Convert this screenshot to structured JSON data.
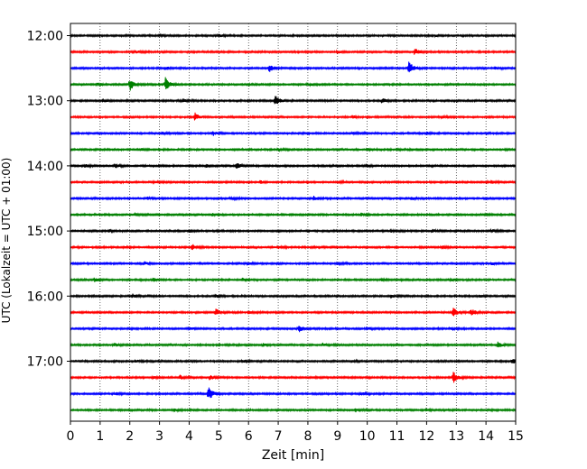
{
  "chart_data": {
    "type": "line",
    "xlabel": "Zeit  [min]",
    "ylabel": "UTC (Lokalzeit = UTC + 01:00)",
    "xlim": [
      0,
      15
    ],
    "x_ticks": [
      0,
      1,
      2,
      3,
      4,
      5,
      6,
      7,
      8,
      9,
      10,
      11,
      12,
      13,
      14,
      15
    ],
    "y_tick_labels": [
      "12:00",
      "13:00",
      "14:00",
      "15:00",
      "16:00",
      "17:00"
    ],
    "grid": "vertical dotted at each minute",
    "trace_interval_minutes": 15,
    "color_cycle": [
      "#000000",
      "#ff0000",
      "#0000ff",
      "#008000"
    ],
    "traces": [
      {
        "start": "12:00",
        "events": [
          [
            3.0,
            0.18
          ],
          [
            5.0,
            0.15
          ],
          [
            12.3,
            0.12
          ]
        ]
      },
      {
        "start": "12:15",
        "events": [
          [
            11.6,
            0.45
          ],
          [
            2.2,
            0.15
          ],
          [
            9.0,
            0.12
          ]
        ]
      },
      {
        "start": "12:30",
        "events": [
          [
            6.7,
            0.5
          ],
          [
            11.4,
            1.0
          ],
          [
            3.2,
            0.2
          ],
          [
            14.3,
            0.15
          ]
        ]
      },
      {
        "start": "12:45",
        "events": [
          [
            2.0,
            0.9
          ],
          [
            3.2,
            1.0
          ],
          [
            0.9,
            0.15
          ],
          [
            8.0,
            0.15
          ]
        ]
      },
      {
        "start": "13:00",
        "events": [
          [
            6.9,
            0.7
          ],
          [
            10.5,
            0.35
          ],
          [
            1.1,
            0.2
          ],
          [
            3.8,
            0.18
          ]
        ]
      },
      {
        "start": "13:15",
        "events": [
          [
            4.2,
            0.55
          ],
          [
            9.5,
            0.15
          ],
          [
            12.5,
            0.12
          ]
        ]
      },
      {
        "start": "13:30",
        "events": [
          [
            3.1,
            0.2
          ],
          [
            4.8,
            0.3
          ],
          [
            9.5,
            0.15
          ],
          [
            12.0,
            0.15
          ]
        ]
      },
      {
        "start": "13:45",
        "events": [
          [
            7.0,
            0.15
          ],
          [
            10.0,
            0.15
          ],
          [
            2.4,
            0.12
          ]
        ]
      },
      {
        "start": "14:00",
        "events": [
          [
            1.5,
            0.3
          ],
          [
            5.6,
            0.5
          ],
          [
            4.6,
            0.2
          ],
          [
            0.5,
            0.2
          ],
          [
            10.0,
            0.15
          ]
        ]
      },
      {
        "start": "14:15",
        "events": [
          [
            9.0,
            0.2
          ],
          [
            6.4,
            0.18
          ],
          [
            2.8,
            0.15
          ],
          [
            14.2,
            0.15
          ]
        ]
      },
      {
        "start": "14:30",
        "events": [
          [
            8.2,
            0.35
          ],
          [
            2.6,
            0.2
          ],
          [
            5.4,
            0.15
          ],
          [
            11.5,
            0.15
          ]
        ]
      },
      {
        "start": "14:45",
        "events": [
          [
            4.8,
            0.2
          ],
          [
            9.8,
            0.15
          ],
          [
            2.2,
            0.15
          ],
          [
            14.0,
            0.15
          ]
        ]
      },
      {
        "start": "15:00",
        "events": [
          [
            1.3,
            0.2
          ],
          [
            4.0,
            0.2
          ],
          [
            10.8,
            0.2
          ],
          [
            12.2,
            0.2
          ],
          [
            14.2,
            0.2
          ]
        ]
      },
      {
        "start": "15:15",
        "events": [
          [
            4.1,
            0.4
          ],
          [
            7.0,
            0.2
          ],
          [
            12.5,
            0.2
          ],
          [
            1.8,
            0.15
          ]
        ]
      },
      {
        "start": "15:30",
        "events": [
          [
            2.5,
            0.2
          ],
          [
            6.0,
            0.15
          ],
          [
            9.0,
            0.18
          ],
          [
            14.2,
            0.2
          ]
        ]
      },
      {
        "start": "15:45",
        "events": [
          [
            0.8,
            0.25
          ],
          [
            2.8,
            0.2
          ],
          [
            5.8,
            0.25
          ],
          [
            10.5,
            0.15
          ],
          [
            12.8,
            0.15
          ]
        ]
      },
      {
        "start": "16:00",
        "events": [
          [
            2.1,
            0.25
          ],
          [
            4.9,
            0.18
          ],
          [
            10.8,
            0.18
          ],
          [
            13.8,
            0.18
          ]
        ]
      },
      {
        "start": "16:15",
        "events": [
          [
            4.9,
            0.45
          ],
          [
            12.9,
            0.6
          ],
          [
            13.5,
            0.55
          ],
          [
            6.0,
            0.2
          ]
        ]
      },
      {
        "start": "16:30",
        "events": [
          [
            7.7,
            0.45
          ],
          [
            12.8,
            0.3
          ],
          [
            4.0,
            0.15
          ],
          [
            10.0,
            0.15
          ]
        ]
      },
      {
        "start": "16:45",
        "events": [
          [
            6.5,
            0.2
          ],
          [
            8.5,
            0.2
          ],
          [
            14.4,
            0.35
          ],
          [
            1.5,
            0.15
          ]
        ]
      },
      {
        "start": "17:00",
        "events": [
          [
            2.2,
            0.2
          ],
          [
            5.8,
            0.2
          ],
          [
            9.5,
            0.15
          ],
          [
            14.9,
            0.3
          ]
        ]
      },
      {
        "start": "17:15",
        "events": [
          [
            12.9,
            0.75
          ],
          [
            3.7,
            0.3
          ],
          [
            4.7,
            0.35
          ],
          [
            2.8,
            0.2
          ]
        ]
      },
      {
        "start": "17:30",
        "events": [
          [
            4.65,
            1.0
          ],
          [
            1.5,
            0.2
          ],
          [
            9.8,
            0.25
          ]
        ]
      },
      {
        "start": "17:45",
        "events": [
          [
            3.5,
            0.15
          ],
          [
            9.6,
            0.2
          ],
          [
            12.0,
            0.15
          ]
        ]
      }
    ]
  }
}
